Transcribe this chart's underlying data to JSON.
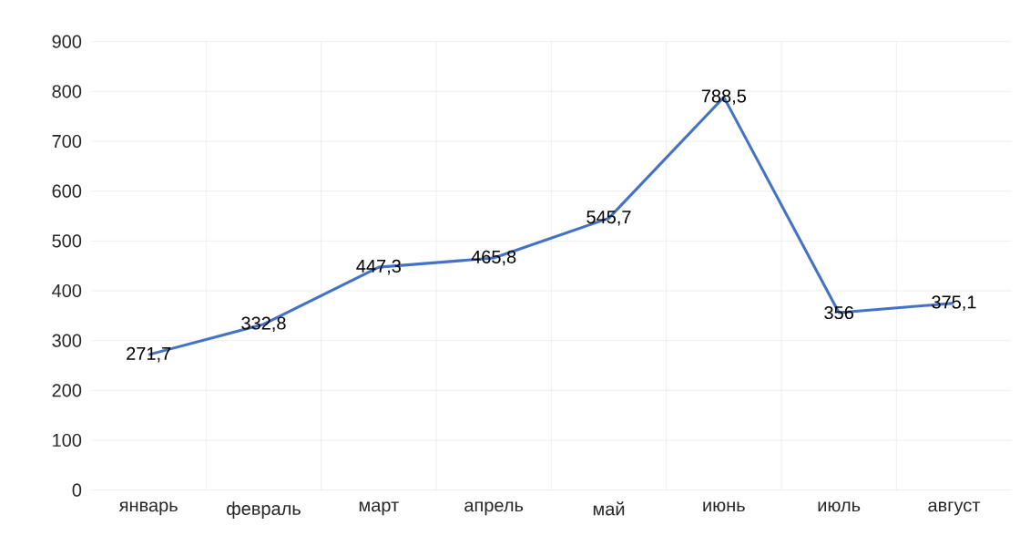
{
  "chart_data": {
    "type": "line",
    "categories": [
      "январь",
      "февраль",
      "март",
      "апрель",
      "май",
      "июнь",
      "июль",
      "август"
    ],
    "values": [
      271.7,
      332.8,
      447.3,
      465.8,
      545.7,
      788.5,
      356,
      375.1
    ],
    "value_labels": [
      "271,7",
      "332,8",
      "447,3",
      "465,8",
      "545,7",
      "788,5",
      "356",
      "375,1"
    ],
    "color": "#4472c4",
    "ylim": [
      0,
      900
    ],
    "yticks": [
      0,
      100,
      200,
      300,
      400,
      500,
      600,
      700,
      800,
      900
    ],
    "grid": true,
    "marker": "none",
    "line_style": "solid"
  }
}
